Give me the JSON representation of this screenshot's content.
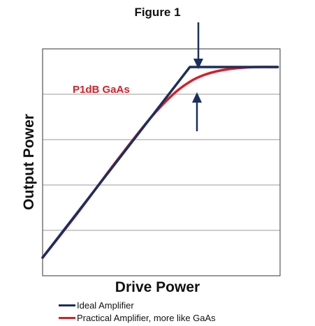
{
  "chart_data": {
    "type": "line",
    "title": "Figure 1",
    "xlabel": "Drive Power",
    "ylabel": "Output Power",
    "xlim": [
      0,
      10
    ],
    "ylim": [
      0,
      10
    ],
    "grid": true,
    "tick_labels_shown": false,
    "legend_position": "bottom-left",
    "annotations": [
      {
        "text": "P1dB GaAs",
        "color": "#e01b24"
      },
      {
        "type": "arrows",
        "description": "downward arrow above and upward arrow below the compression point",
        "color": "#1b2f5e"
      }
    ],
    "series": [
      {
        "name": "Ideal Amplifier",
        "color": "#1b2f5e",
        "x": [
          0,
          6.2,
          9.9
        ],
        "y": [
          0.8,
          9.2,
          9.2
        ]
      },
      {
        "name": "Practical Amplifier, more like GaAs",
        "color": "#e01b24",
        "x": [
          0,
          1.5,
          3,
          4.5,
          5.5,
          6.2,
          6.8,
          7.5,
          8.2,
          9,
          9.9
        ],
        "y": [
          0.8,
          2.8,
          4.9,
          6.9,
          8.0,
          8.55,
          8.85,
          9.05,
          9.15,
          9.2,
          9.2
        ]
      }
    ]
  }
}
